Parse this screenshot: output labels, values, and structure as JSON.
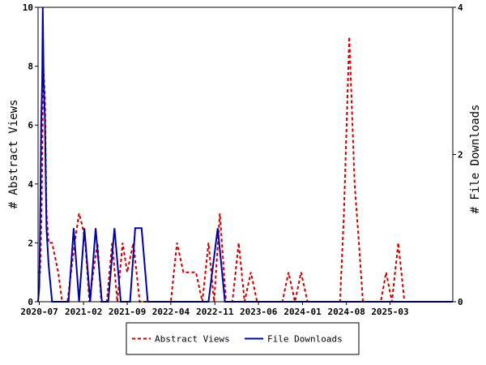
{
  "chart_data": {
    "type": "line",
    "xlabel": "",
    "ylabel_left": "# Abstract Views",
    "ylabel_right": "# File Downloads",
    "ylim_left": [
      0,
      10
    ],
    "ylim_right": [
      0,
      4
    ],
    "x_range": [
      "2020-06-25",
      "2025-12-31"
    ],
    "x_ticks": [
      "2020-07",
      "2021-02",
      "2021-09",
      "2022-04",
      "2022-11",
      "2023-06",
      "2024-01",
      "2024-08",
      "2025-03"
    ],
    "y_ticks_left": [
      0,
      2,
      4,
      6,
      8,
      10
    ],
    "y_ticks_right": [
      0,
      2,
      4
    ],
    "legend_position": "bottom",
    "series": [
      {
        "name": "Abstract Views",
        "axis": "left",
        "color": "#cc0000",
        "style": "dashed",
        "points": [
          [
            "2020-06-25",
            1
          ],
          [
            "2020-07-05",
            1
          ],
          [
            "2020-07-12",
            3
          ],
          [
            "2020-07-20",
            8
          ],
          [
            "2020-07-28",
            7
          ],
          [
            "2020-08-05",
            3
          ],
          [
            "2020-08-15",
            2
          ],
          [
            "2020-09-01",
            2
          ],
          [
            "2020-10-01",
            1
          ],
          [
            "2020-10-20",
            0
          ],
          [
            "2020-11-15",
            0
          ],
          [
            "2020-12-20",
            2
          ],
          [
            "2021-01-10",
            3
          ],
          [
            "2021-01-25",
            2.6
          ],
          [
            "2021-02-10",
            2
          ],
          [
            "2021-03-01",
            0
          ],
          [
            "2021-03-20",
            1
          ],
          [
            "2021-04-10",
            2
          ],
          [
            "2021-04-28",
            0
          ],
          [
            "2021-05-25",
            0
          ],
          [
            "2021-06-20",
            2
          ],
          [
            "2021-07-15",
            0
          ],
          [
            "2021-08-10",
            2
          ],
          [
            "2021-09-01",
            1
          ],
          [
            "2021-10-01",
            2
          ],
          [
            "2021-11-01",
            0
          ],
          [
            "2022-04-01",
            0
          ],
          [
            "2022-05-01",
            2
          ],
          [
            "2022-06-01",
            1
          ],
          [
            "2022-08-01",
            1
          ],
          [
            "2022-09-01",
            0
          ],
          [
            "2022-10-01",
            2
          ],
          [
            "2022-10-28",
            0
          ],
          [
            "2022-11-25",
            3
          ],
          [
            "2022-12-25",
            0
          ],
          [
            "2023-01-25",
            0
          ],
          [
            "2023-02-25",
            2
          ],
          [
            "2023-03-25",
            0
          ],
          [
            "2023-04-25",
            1
          ],
          [
            "2023-05-25",
            0
          ],
          [
            "2023-09-25",
            0
          ],
          [
            "2023-10-25",
            1
          ],
          [
            "2023-11-25",
            0
          ],
          [
            "2023-12-25",
            1
          ],
          [
            "2024-01-25",
            0
          ],
          [
            "2024-07-01",
            0
          ],
          [
            "2024-07-20",
            3
          ],
          [
            "2024-08-15",
            9
          ],
          [
            "2024-09-10",
            4
          ],
          [
            "2024-10-01",
            2
          ],
          [
            "2024-10-20",
            0
          ],
          [
            "2025-01-15",
            0
          ],
          [
            "2025-02-10",
            1
          ],
          [
            "2025-03-10",
            0
          ],
          [
            "2025-04-10",
            2
          ],
          [
            "2025-05-10",
            0
          ],
          [
            "2025-12-31",
            0
          ]
        ]
      },
      {
        "name": "File Downloads",
        "axis": "right",
        "color": "#0000aa",
        "style": "solid",
        "points": [
          [
            "2020-06-25",
            0
          ],
          [
            "2020-07-01",
            0.2
          ],
          [
            "2020-07-05",
            1
          ],
          [
            "2020-07-10",
            2.4
          ],
          [
            "2020-07-15",
            3
          ],
          [
            "2020-07-18",
            4
          ],
          [
            "2020-07-22",
            3
          ],
          [
            "2020-07-28",
            2.5
          ],
          [
            "2020-08-05",
            1
          ],
          [
            "2020-08-15",
            0.5
          ],
          [
            "2020-09-01",
            0
          ],
          [
            "2020-11-20",
            0
          ],
          [
            "2020-12-15",
            1
          ],
          [
            "2021-01-10",
            0
          ],
          [
            "2021-02-05",
            1
          ],
          [
            "2021-03-05",
            0
          ],
          [
            "2021-04-01",
            1
          ],
          [
            "2021-05-01",
            0
          ],
          [
            "2021-06-01",
            0
          ],
          [
            "2021-07-01",
            1
          ],
          [
            "2021-08-01",
            0
          ],
          [
            "2021-09-15",
            0
          ],
          [
            "2021-10-10",
            1
          ],
          [
            "2021-11-10",
            1
          ],
          [
            "2021-12-10",
            0
          ],
          [
            "2022-10-01",
            0
          ],
          [
            "2022-11-15",
            1
          ],
          [
            "2022-12-20",
            0
          ],
          [
            "2025-12-31",
            0
          ]
        ]
      }
    ]
  }
}
